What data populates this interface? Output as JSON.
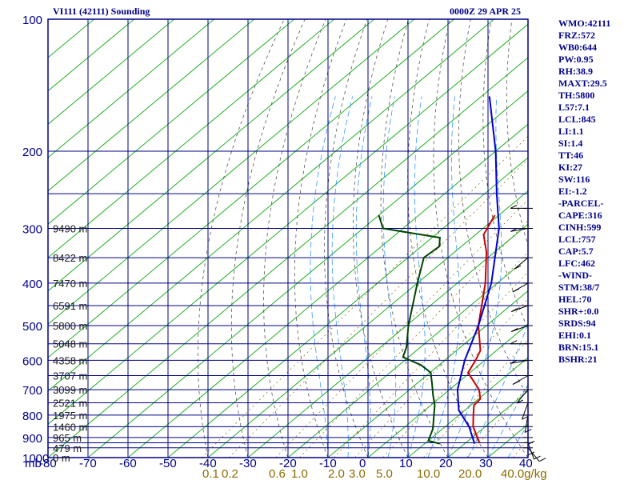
{
  "header": {
    "left": "VI111 (42111) Sounding",
    "right": "0000Z 29 APR 25"
  },
  "indices": [
    "WMO:42111",
    "FRZ:572",
    "WB0:644",
    "PW:0.95",
    "RH:38.9",
    "MAXT:29.5",
    "TH:5800",
    "L57:7.1",
    "LCL:845",
    "LI:1.1",
    "SI:1.4",
    "TT:46",
    "KI:27",
    "SW:116",
    "EI:-1.2",
    "-PARCEL-",
    "CAPE:316",
    "CINH:599",
    "LCL:757",
    "CAP:5.7",
    "LFC:462",
    "-WIND-",
    "STM:38/7",
    "HEL:70",
    "SHR+:0.0",
    "SRDS:94",
    "EHI:0.1",
    "BRN:15.1",
    "BSHR:21"
  ],
  "colors": {
    "frame": "#00008b",
    "isotherm": "#22b022",
    "dry_adiabat": "#555555",
    "moist_adiabat": "#3399ff",
    "temperature": "#cc0000",
    "dewpoint": "#004400",
    "parcel": "#0000cc",
    "mixing_ratio": "#8b6b00"
  },
  "chart_data": {
    "type": "line",
    "title": "VI111 (42111) Sounding",
    "x_axis": {
      "unit_label": "mb",
      "ticks": [
        -80,
        -70,
        -60,
        -50,
        -40,
        -30,
        -20,
        -10,
        0,
        10,
        20,
        30,
        40
      ],
      "range": [
        -80,
        40
      ]
    },
    "y_axis": {
      "scale": "log",
      "ticks": [
        100,
        200,
        300,
        400,
        500,
        600,
        700,
        800,
        900,
        1000
      ],
      "range": [
        100,
        1000
      ]
    },
    "height_labels": [
      {
        "p": 300,
        "label": "9490 m"
      },
      {
        "p": 350,
        "label": "8422 m"
      },
      {
        "p": 400,
        "label": "7470 m"
      },
      {
        "p": 450,
        "label": "6591 m"
      },
      {
        "p": 500,
        "label": "5800 m"
      },
      {
        "p": 550,
        "label": "5048 m"
      },
      {
        "p": 600,
        "label": "4358 m"
      },
      {
        "p": 650,
        "label": "3707 m"
      },
      {
        "p": 700,
        "label": "3099 m"
      },
      {
        "p": 750,
        "label": "2521 m"
      },
      {
        "p": 800,
        "label": "1975 m"
      },
      {
        "p": 850,
        "label": "1460 m"
      },
      {
        "p": 900,
        "label": "965 m"
      },
      {
        "p": 950,
        "label": "479 m"
      },
      {
        "p": 1000,
        "label": "0 m"
      }
    ],
    "mixing_ratio_labels": [
      "0.1",
      "0.2",
      "0.6",
      "1.0",
      "2.0",
      "3.0",
      "5.0",
      "10.0",
      "20.0",
      "40.0g/kg"
    ],
    "series": [
      {
        "key": "temperature",
        "points": [
          [
            926,
            23.5
          ],
          [
            850,
            17.0
          ],
          [
            800,
            13.6
          ],
          [
            760,
            10.8
          ],
          [
            735,
            10.5
          ],
          [
            700,
            7.4
          ],
          [
            640,
            -0.5
          ],
          [
            600,
            -2.3
          ],
          [
            570,
            -4.0
          ],
          [
            500,
            -12.0
          ],
          [
            400,
            -23.0
          ],
          [
            340,
            -32.0
          ],
          [
            310,
            -38.0
          ],
          [
            280,
            -41.0
          ]
        ]
      },
      {
        "key": "dewpoint",
        "points": [
          [
            930,
            13.8
          ],
          [
            915,
            10.0
          ],
          [
            860,
            7.6
          ],
          [
            760,
            1.0
          ],
          [
            720,
            -2.5
          ],
          [
            680,
            -6.0
          ],
          [
            640,
            -9.8
          ],
          [
            615,
            -14.5
          ],
          [
            590,
            -21.4
          ],
          [
            560,
            -23.5
          ],
          [
            500,
            -29.5
          ],
          [
            400,
            -40.0
          ],
          [
            350,
            -46.0
          ],
          [
            330,
            -45.5
          ],
          [
            315,
            -48.0
          ],
          [
            300,
            -65.0
          ],
          [
            280,
            -70.0
          ]
        ]
      },
      {
        "key": "parcel",
        "points": [
          [
            930,
            22.5
          ],
          [
            850,
            16.0
          ],
          [
            780,
            8.5
          ],
          [
            700,
            2.0
          ],
          [
            600,
            -5.0
          ],
          [
            500,
            -12.0
          ],
          [
            400,
            -21.5
          ],
          [
            300,
            -36.0
          ],
          [
            250,
            -47.0
          ],
          [
            200,
            -60.0
          ],
          [
            150,
            -78.0
          ]
        ]
      }
    ]
  }
}
